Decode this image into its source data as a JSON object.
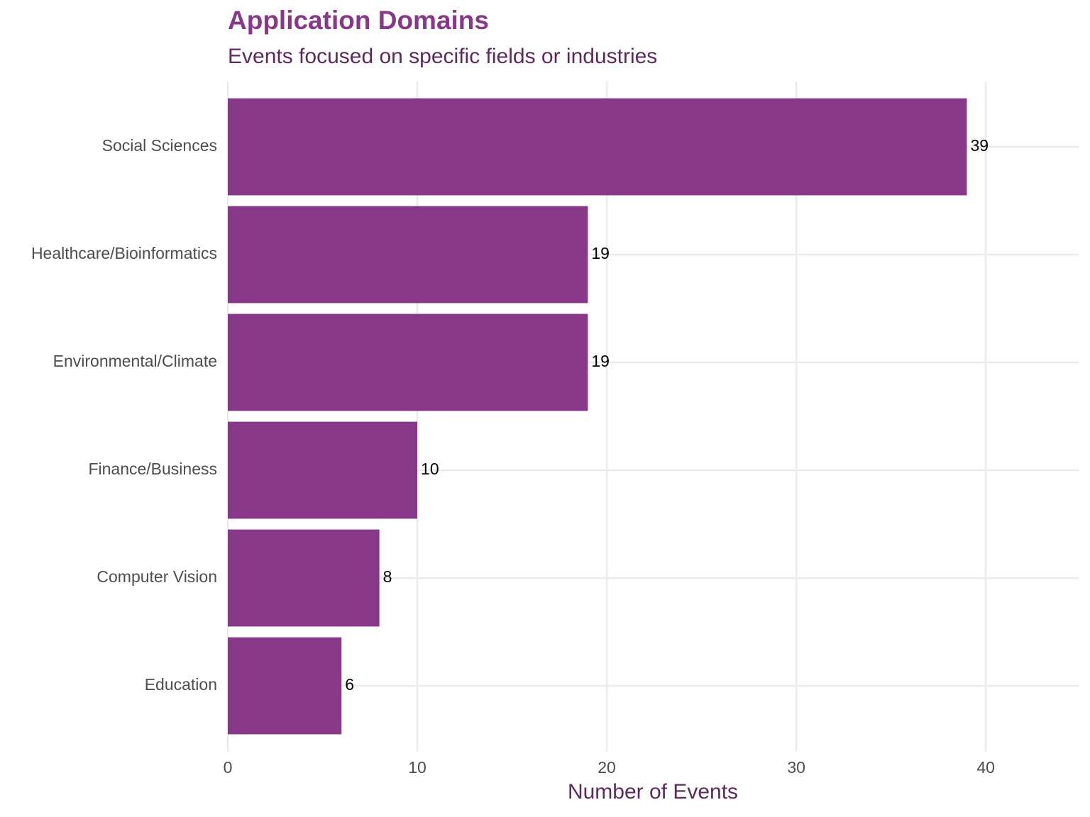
{
  "chart_data": {
    "type": "bar",
    "orientation": "horizontal",
    "title": "Application Domains",
    "subtitle": "Events focused on specific fields or industries",
    "x_label": "Number of Events",
    "categories": [
      "Social Sciences",
      "Healthcare/Bioinformatics",
      "Environmental/Climate",
      "Finance/Business",
      "Computer Vision",
      "Education"
    ],
    "values": [
      39,
      19,
      19,
      10,
      8,
      6
    ],
    "color": "#883888",
    "xlim": [
      0,
      44.9
    ],
    "xticks": [
      0,
      10,
      20,
      30,
      40
    ],
    "grid": true
  }
}
